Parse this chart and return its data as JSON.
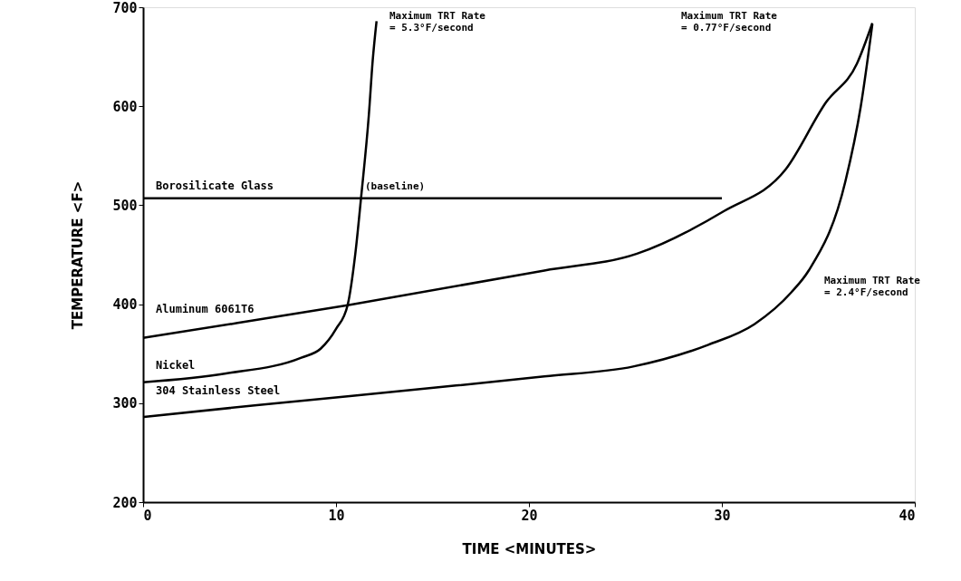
{
  "chart_data": {
    "type": "line",
    "xlabel": "TIME <MINUTES>",
    "ylabel": "TEMPERATURE <F>",
    "xlim": [
      0,
      40
    ],
    "xticks": [
      0,
      10,
      20,
      30,
      40
    ],
    "ylim": [
      200,
      700
    ],
    "yticks": [
      200,
      300,
      400,
      500,
      600,
      700
    ],
    "grid": false,
    "marker": "none",
    "line_style": "solid",
    "series": [
      {
        "name": "Borosilicate Glass",
        "color": "#000000",
        "x": [
          0,
          30
        ],
        "values": [
          507,
          507
        ]
      },
      {
        "name": "Aluminum 6061T6",
        "color": "#000000",
        "x": [
          0,
          4.9,
          10.6,
          20.8,
          25.6,
          30.1,
          33.3,
          35.4,
          37.0,
          37.8
        ],
        "values": [
          366,
          381,
          399,
          434,
          451,
          494,
          536,
          604,
          643,
          684
        ]
      },
      {
        "name": "Nickel",
        "color": "#000000",
        "x": [
          0,
          4.3,
          8.2,
          9.2,
          10.0,
          10.6,
          11.0,
          11.3,
          11.7,
          11.9,
          12.1
        ],
        "values": [
          321,
          330,
          346,
          355,
          375,
          399,
          451,
          508,
          591,
          646,
          686
        ]
      },
      {
        "name": "304 Stainless Steel",
        "color": "#000000",
        "x": [
          0,
          5.9,
          15.3,
          20.8,
          25.4,
          29.3,
          31.7,
          33.6,
          34.5,
          36.4,
          37.2,
          37.8
        ],
        "values": [
          286,
          298,
          316,
          327,
          337,
          359,
          380,
          412,
          434,
          524,
          600,
          683
        ]
      }
    ],
    "annotations": [
      {
        "text": "(baseline)",
        "x": 11.5,
        "y": 507
      },
      "Maximum TRT Rate\n= 5.3°F/second",
      "Maximum TRT Rate\n= 0.77°F/second",
      "Maximum TRT Rate\n= 2.4°F/second"
    ]
  }
}
